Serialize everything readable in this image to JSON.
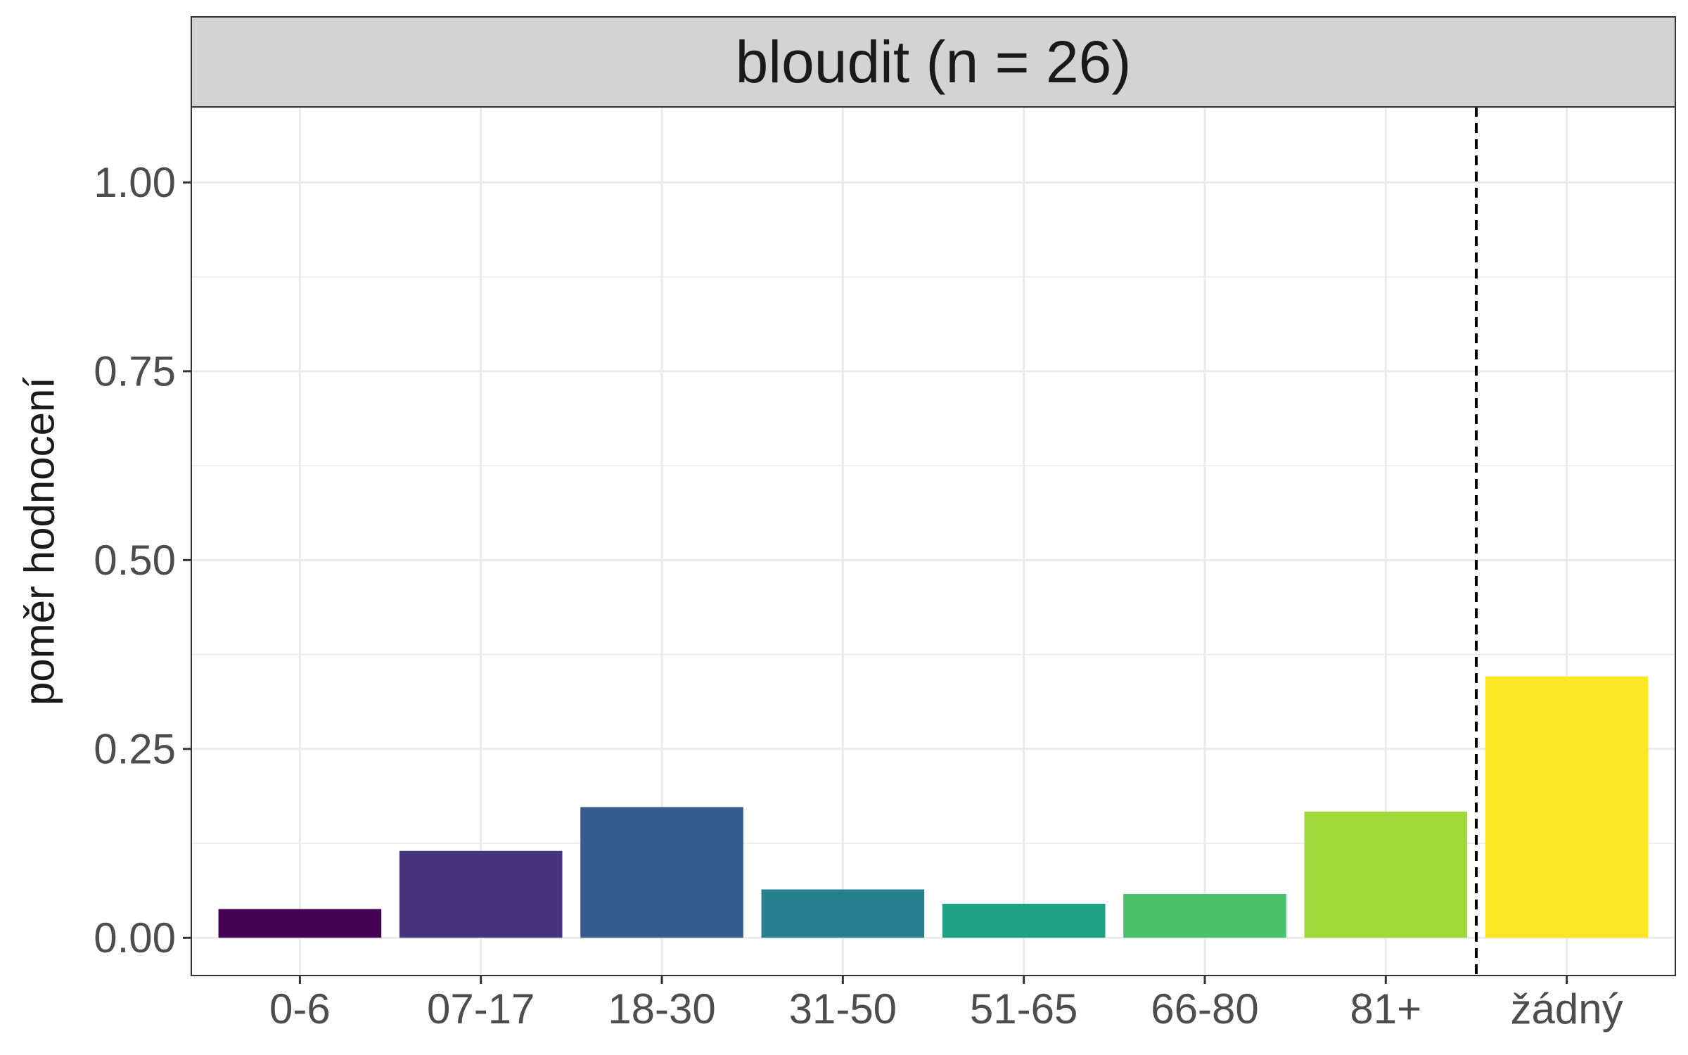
{
  "chart_data": {
    "type": "bar",
    "facet_title": "bloudit (n = 26)",
    "ylabel": "poměr hodnocení",
    "xlabel": "",
    "categories": [
      "0-6",
      "07-17",
      "18-30",
      "31-50",
      "51-65",
      "66-80",
      "81+",
      "žádný"
    ],
    "values": [
      0.038,
      0.115,
      0.173,
      0.064,
      0.045,
      0.058,
      0.167,
      0.346
    ],
    "colors": [
      "#440154",
      "#46337E",
      "#365C8D",
      "#277F8E",
      "#1FA187",
      "#4AC16D",
      "#9FDA3A",
      "#FDE725"
    ],
    "ylim": [
      -0.05,
      1.1
    ],
    "yticks": [
      0,
      0.25,
      0.5,
      0.75,
      1.0
    ],
    "ytick_labels": [
      "0.00",
      "0.25",
      "0.50",
      "0.75",
      "1.00"
    ],
    "reference_line": {
      "style": "dashed",
      "between_categories": [
        "81+",
        "žádný"
      ]
    },
    "grid": true,
    "legend": "none",
    "theme": {
      "strip_fill": "#D3D3D3",
      "grid_color": "#EBEBEB",
      "panel_border": "#333333"
    }
  }
}
